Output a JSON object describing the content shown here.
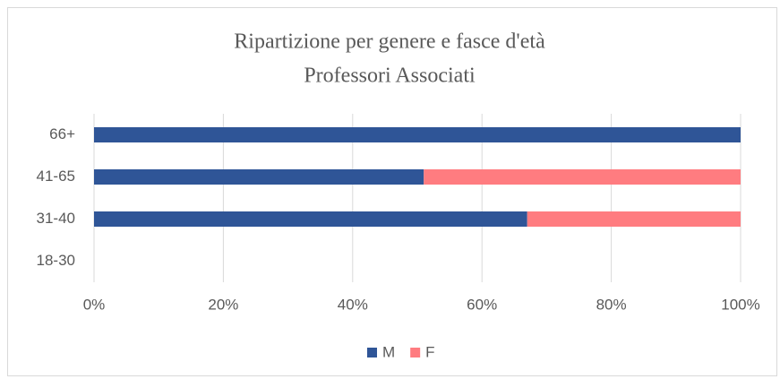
{
  "chart_data": {
    "type": "stacked_bar_horizontal",
    "title": "Ripartizione per genere e fasce d'età",
    "subtitle": "Professori Associati",
    "categories": [
      "18-30",
      "31-40",
      "41-65",
      "66+"
    ],
    "series": [
      {
        "name": "M",
        "color": "#2f5597",
        "values": [
          0,
          67,
          51,
          100
        ]
      },
      {
        "name": "F",
        "color": "#ff7c80",
        "values": [
          0,
          33,
          49,
          0
        ]
      }
    ],
    "xlim": [
      0,
      100
    ],
    "xticks": [
      {
        "value": 0,
        "label": "0%"
      },
      {
        "value": 20,
        "label": "20%"
      },
      {
        "value": 40,
        "label": "40%"
      },
      {
        "value": 60,
        "label": "60%"
      },
      {
        "value": 80,
        "label": "80%"
      },
      {
        "value": 100,
        "label": "100%"
      }
    ],
    "grid": true,
    "legend": "bottom"
  }
}
